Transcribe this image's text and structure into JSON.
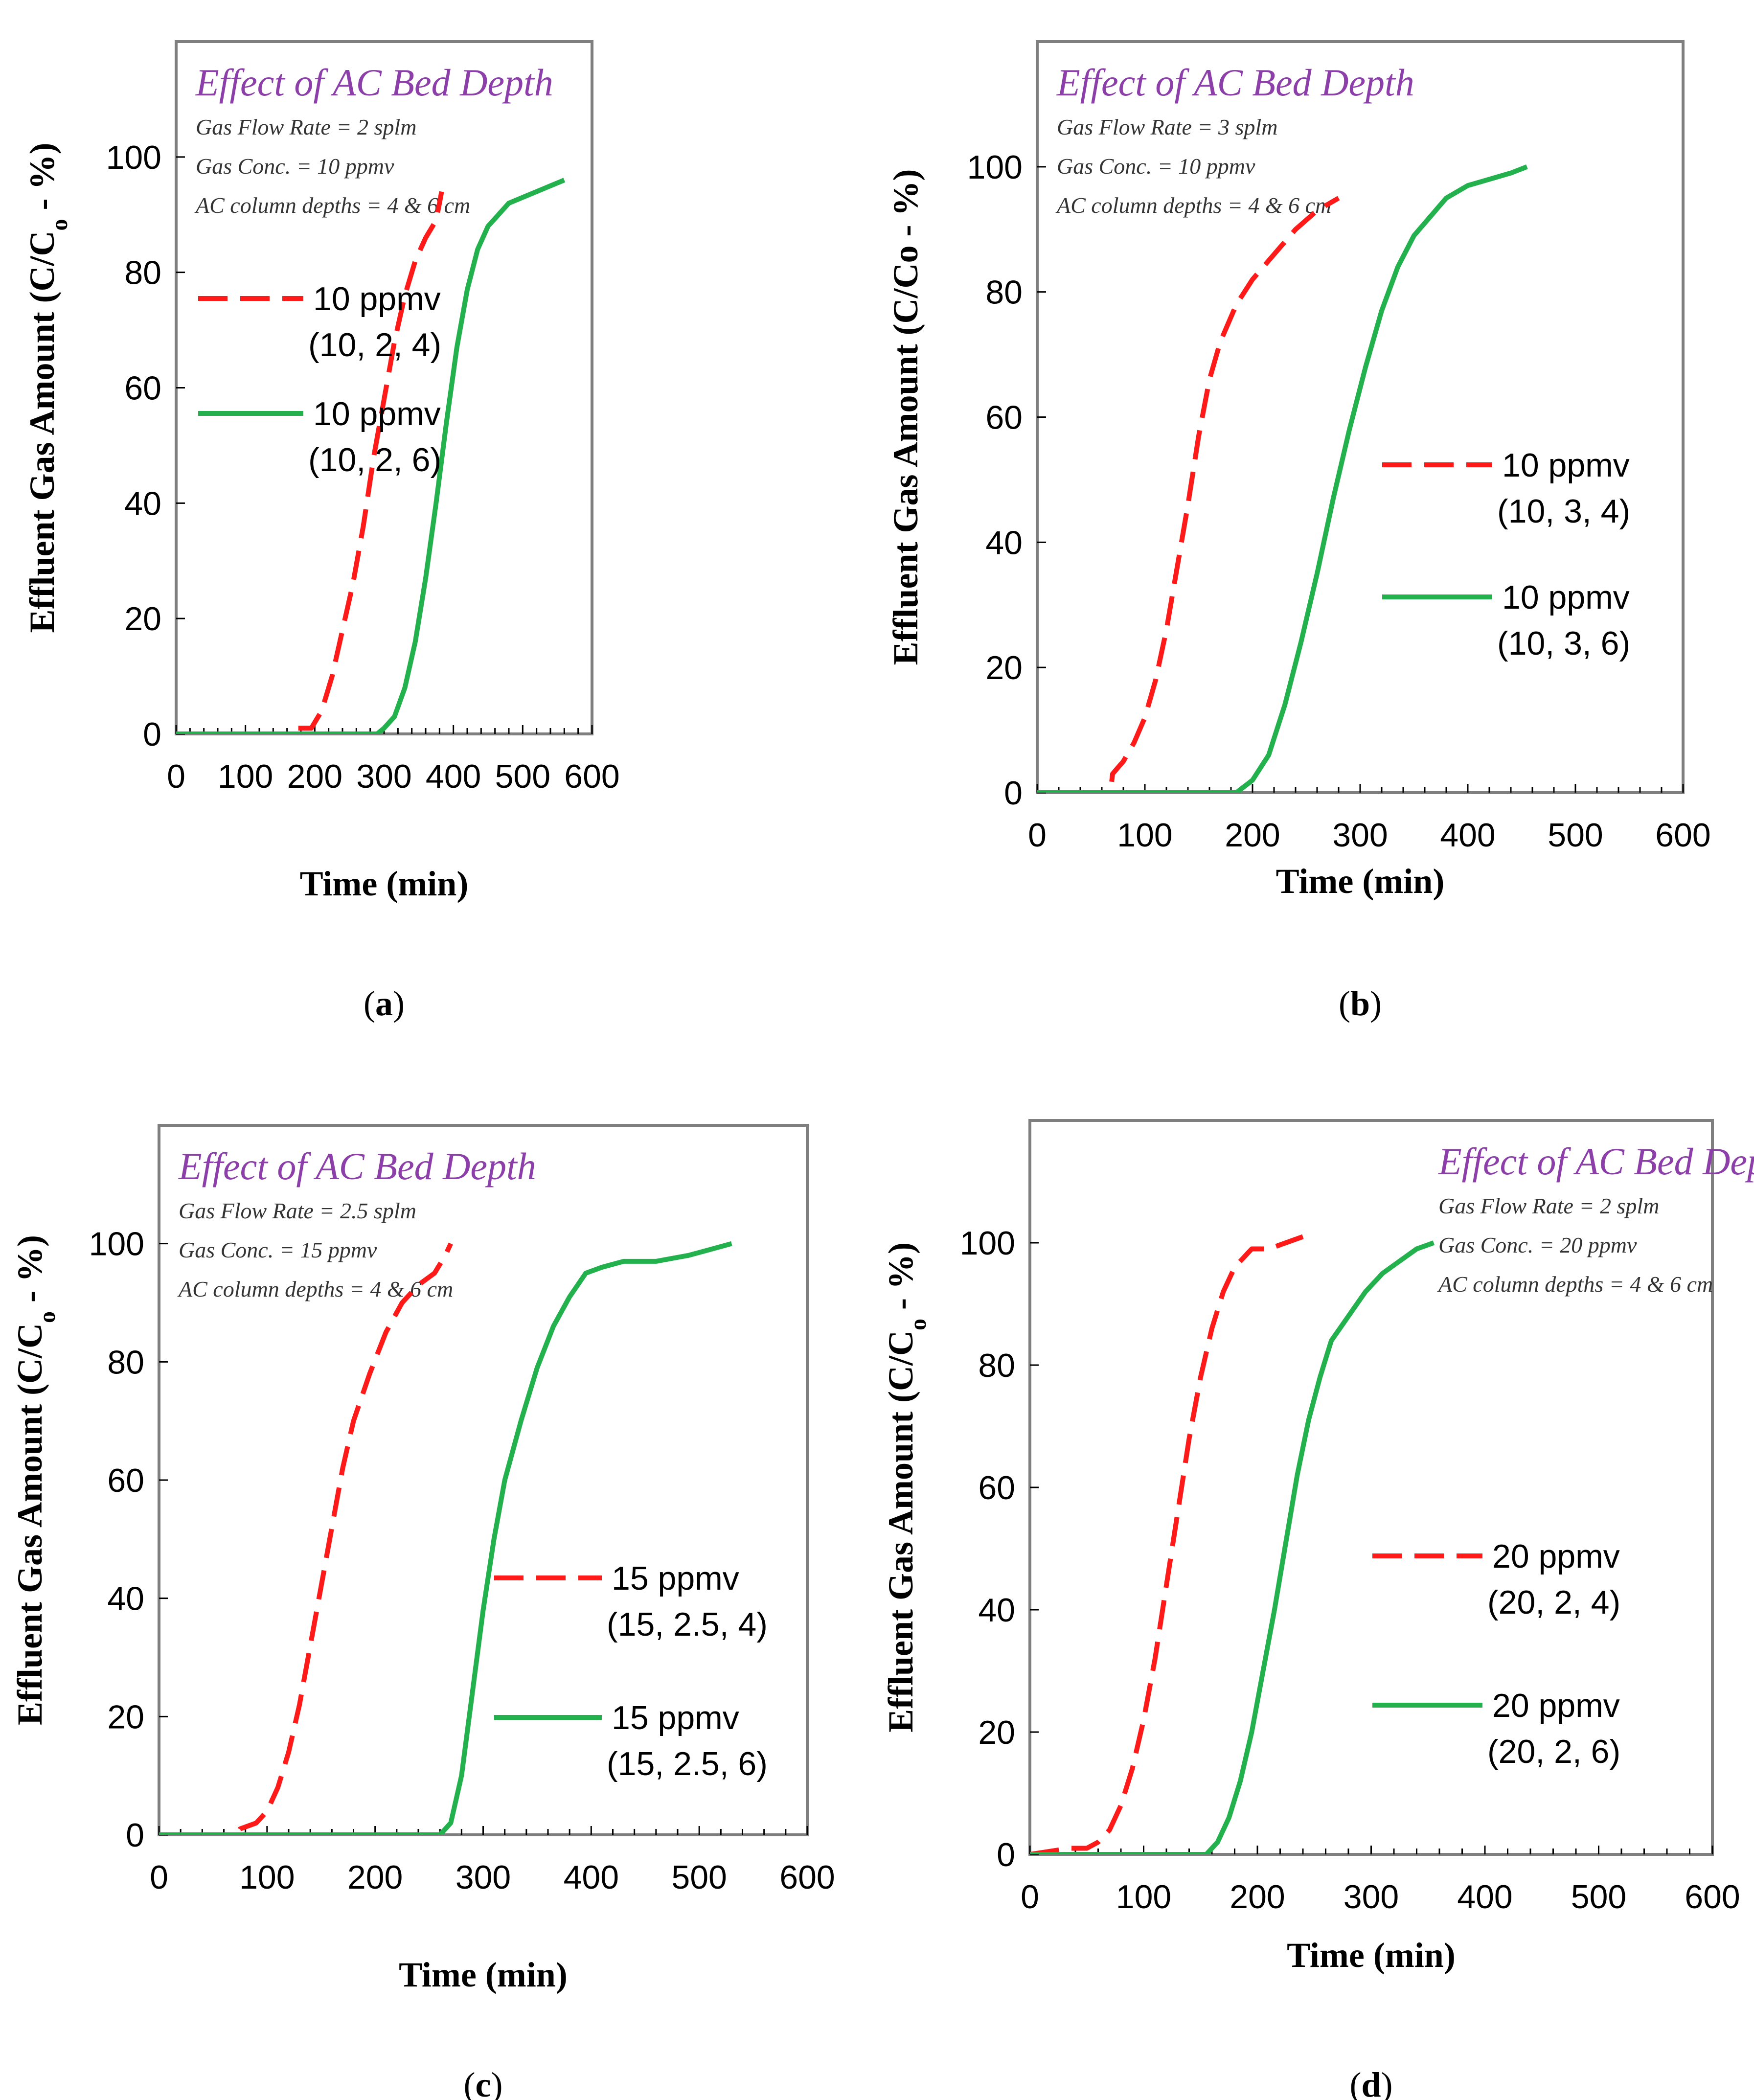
{
  "figure": {
    "colors": {
      "red": "#ff1a1a",
      "green": "#22b14c",
      "frame": "#7f7f7f"
    }
  },
  "chart_data": [
    {
      "type": "line",
      "panel_label": "a",
      "box": {
        "title": "Effect of AC Bed Depth",
        "lines": [
          "Gas Flow Rate = 2 splm",
          "Gas Conc. = 10 ppmv",
          "AC column depths = 4 & 6 cm"
        ]
      },
      "xlabel": "Time (min)",
      "ylabel_main": "Effluent Gas Amount (C/C",
      "ylabel_sub": "o",
      "ylabel_end": " - %)",
      "xlim": [
        0,
        600
      ],
      "ylim": [
        0,
        120
      ],
      "xticks": [
        0,
        100,
        200,
        300,
        400,
        500,
        600
      ],
      "yticks": [
        0,
        20,
        40,
        60,
        80,
        100
      ],
      "series": [
        {
          "name": "10 ppmv",
          "params": "(10, 2, 4)",
          "style": "dashed",
          "color": "red",
          "x": [
            0,
            165,
            168,
            195,
            210,
            225,
            240,
            255,
            270,
            285,
            300,
            315,
            330,
            345,
            360,
            375,
            380,
            383
          ],
          "y": [
            0,
            0,
            1,
            1,
            4,
            10,
            18,
            26,
            36,
            48,
            58,
            68,
            76,
            82,
            86,
            89,
            92,
            94
          ]
        },
        {
          "name": "10 ppmv",
          "params": "(10, 2, 6)",
          "style": "solid",
          "color": "green",
          "x": [
            0,
            290,
            300,
            315,
            330,
            345,
            360,
            375,
            390,
            405,
            420,
            435,
            450,
            465,
            480,
            500,
            520,
            540,
            560
          ],
          "y": [
            0,
            0,
            1,
            3,
            8,
            16,
            27,
            40,
            54,
            67,
            77,
            84,
            88,
            90,
            92,
            93,
            94,
            95,
            96
          ]
        }
      ],
      "legend_pos": "top-left"
    },
    {
      "type": "line",
      "panel_label": "b",
      "box": {
        "title": "Effect of AC Bed Depth",
        "lines": [
          "Gas Flow Rate = 3 splm",
          "Gas Conc. = 10 ppmv",
          "AC column depths = 4 & 6 cm"
        ]
      },
      "xlabel": "Time (min)",
      "ylabel_main": "Effluent Gas Amount (C/Co - %)",
      "ylabel_sub": "",
      "ylabel_end": "",
      "xlim": [
        0,
        600
      ],
      "ylim": [
        0,
        120
      ],
      "xticks": [
        0,
        100,
        200,
        300,
        400,
        500,
        600
      ],
      "yticks": [
        0,
        20,
        40,
        60,
        80,
        100
      ],
      "series": [
        {
          "name": "10 ppmv",
          "params": "(10, 3, 4)",
          "style": "dashed",
          "color": "red",
          "x": [
            0,
            68,
            70,
            80,
            90,
            100,
            110,
            120,
            130,
            140,
            150,
            160,
            170,
            185,
            200,
            220,
            240,
            260,
            280
          ],
          "y": [
            0,
            0,
            3,
            5,
            8,
            12,
            18,
            26,
            36,
            46,
            57,
            66,
            72,
            78,
            82,
            86,
            90,
            93,
            95
          ]
        },
        {
          "name": "10 ppmv",
          "params": "(10, 3, 6)",
          "style": "solid",
          "color": "green",
          "x": [
            0,
            185,
            200,
            215,
            230,
            245,
            260,
            275,
            290,
            305,
            320,
            335,
            350,
            365,
            380,
            400,
            420,
            440,
            455
          ],
          "y": [
            0,
            0,
            2,
            6,
            14,
            24,
            35,
            47,
            58,
            68,
            77,
            84,
            89,
            92,
            95,
            97,
            98,
            99,
            100
          ]
        }
      ],
      "legend_pos": "right"
    },
    {
      "type": "line",
      "panel_label": "c",
      "box": {
        "title": "Effect of AC Bed Depth",
        "lines": [
          "Gas Flow Rate = 2.5 splm",
          "Gas Conc. = 15 ppmv",
          "AC column depths = 4 & 6 cm"
        ]
      },
      "xlabel": "Time (min)",
      "ylabel_main": "Effluent Gas Amount (C/C",
      "ylabel_sub": "o",
      "ylabel_end": " - %)",
      "xlim": [
        0,
        600
      ],
      "ylim": [
        0,
        120
      ],
      "xticks": [
        0,
        100,
        200,
        300,
        400,
        500,
        600
      ],
      "yticks": [
        0,
        20,
        40,
        60,
        80,
        100
      ],
      "series": [
        {
          "name": "15 ppmv",
          "params": "(15, 2.5, 4)",
          "style": "dashed",
          "color": "red",
          "x": [
            0,
            72,
            75,
            90,
            100,
            110,
            120,
            130,
            140,
            150,
            160,
            170,
            180,
            195,
            210,
            225,
            240,
            255,
            265,
            270
          ],
          "y": [
            0,
            0,
            1,
            2,
            4,
            8,
            14,
            22,
            32,
            42,
            52,
            62,
            70,
            78,
            85,
            90,
            93,
            95,
            98,
            100
          ]
        },
        {
          "name": "15 ppmv",
          "params": "(15, 2.5, 6)",
          "style": "solid",
          "color": "green",
          "x": [
            0,
            260,
            270,
            280,
            290,
            300,
            310,
            320,
            335,
            350,
            365,
            380,
            395,
            410,
            430,
            460,
            490,
            510,
            530
          ],
          "y": [
            0,
            0,
            2,
            10,
            24,
            38,
            50,
            60,
            70,
            79,
            86,
            91,
            95,
            96,
            97,
            97,
            98,
            99,
            100
          ]
        }
      ],
      "legend_pos": "bottom-right"
    },
    {
      "type": "line",
      "panel_label": "d",
      "box": {
        "title": "Effect of AC Bed Depth",
        "lines": [
          "Gas Flow Rate = 2 splm",
          "Gas Conc. = 20 ppmv",
          "AC column depths = 4 & 6 cm"
        ]
      },
      "xlabel": "Time (min)",
      "ylabel_main": "Effluent Gas Amount (C/C",
      "ylabel_sub": "o",
      "ylabel_end": " - %)",
      "xlim": [
        0,
        600
      ],
      "ylim": [
        0,
        120
      ],
      "xticks": [
        0,
        100,
        200,
        300,
        400,
        500,
        600
      ],
      "yticks": [
        0,
        20,
        40,
        60,
        80,
        100
      ],
      "series": [
        {
          "name": "20 ppmv",
          "params": "(20, 2, 4)",
          "style": "dashed",
          "color": "red",
          "x": [
            0,
            35,
            50,
            60,
            70,
            80,
            90,
            100,
            110,
            120,
            130,
            140,
            150,
            160,
            170,
            180,
            195,
            210,
            225,
            240
          ],
          "y": [
            0,
            1,
            1,
            2,
            4,
            8,
            14,
            22,
            32,
            44,
            56,
            68,
            78,
            86,
            92,
            96,
            99,
            99,
            100,
            101
          ]
        },
        {
          "name": "20 ppmv",
          "params": "(20, 2, 6)",
          "style": "solid",
          "color": "green",
          "x": [
            0,
            155,
            165,
            175,
            185,
            195,
            205,
            215,
            225,
            235,
            245,
            255,
            265,
            280,
            295,
            310,
            325,
            340,
            355
          ],
          "y": [
            0,
            0,
            2,
            6,
            12,
            20,
            30,
            40,
            51,
            62,
            71,
            78,
            84,
            88,
            92,
            95,
            97,
            99,
            100
          ]
        }
      ],
      "legend_pos": "right"
    }
  ]
}
